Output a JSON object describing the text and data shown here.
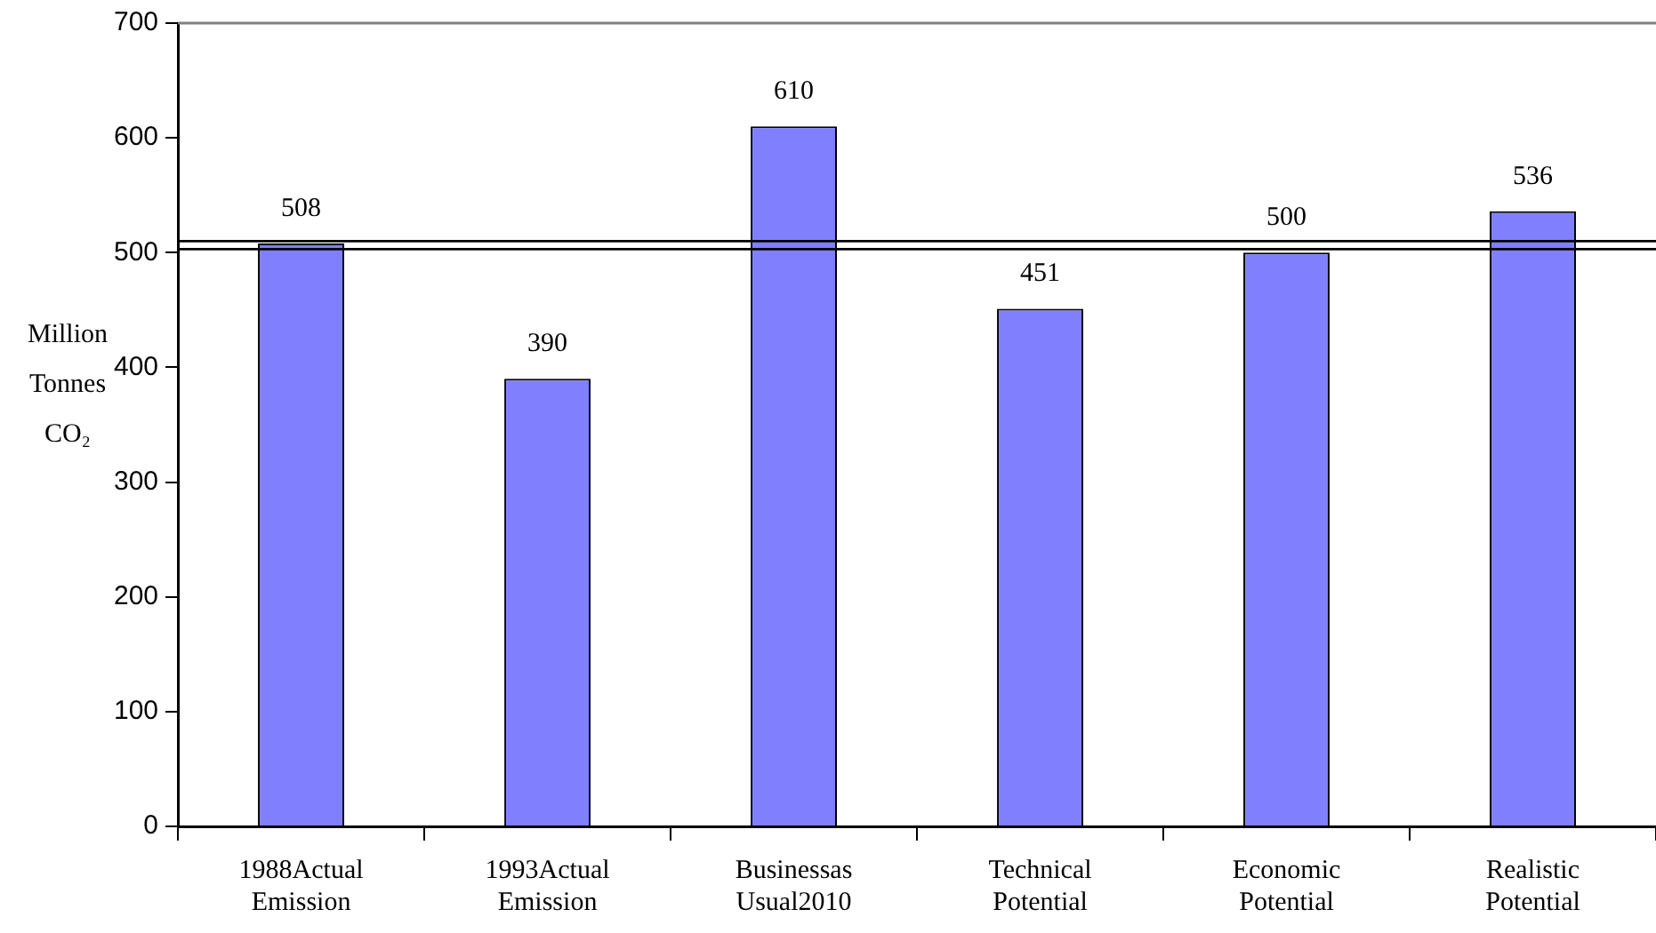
{
  "chart_data": {
    "type": "bar",
    "ylabel": "Million Tonnes CO₂",
    "categories": [
      "1988Actual Emission",
      "1993Actual Emission",
      "Businessas Usual2010",
      "Technical Potential",
      "Economic Potential",
      "Realistic Potential"
    ],
    "values": [
      508,
      390,
      610,
      451,
      500,
      536
    ],
    "color": "#8080ff",
    "ylim": [
      0,
      700
    ],
    "yticks": [
      0,
      100,
      200,
      300,
      400,
      500,
      600,
      700
    ],
    "ref_lines": [
      {
        "axis": "y",
        "value": 510,
        "color": "#000000"
      },
      {
        "axis": "y",
        "value": 503,
        "color": "#000000"
      }
    ],
    "data_labels": true,
    "grid": false,
    "legend": false
  }
}
